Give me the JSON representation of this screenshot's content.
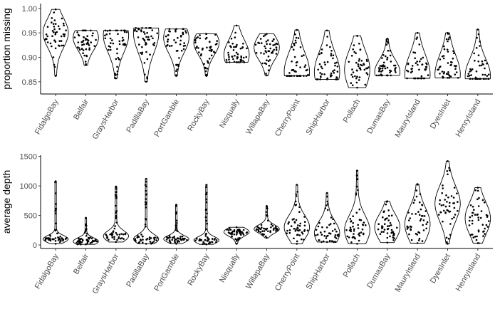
{
  "chart_data": [
    {
      "type": "violin",
      "ylabel": "proportion missing",
      "xlabel": "",
      "ylim": [
        0.825,
        1.01
      ],
      "yticks": [
        "0.85",
        "0.90",
        "0.95",
        "1.00"
      ],
      "yticks_values": [
        0.85,
        0.9,
        0.95,
        1.0
      ],
      "categories": [
        "FidalgoBay",
        "Belfair",
        "GraysHarbor",
        "PadillaBay",
        "PortGamble",
        "RockyBay",
        "Nisqually",
        "WillapaBay",
        "CherryPoint",
        "ShipHarbor",
        "Pollach",
        "DumasBay",
        "MauryIsland",
        "DyesInlet",
        "HenryIsland"
      ],
      "series": [
        {
          "category": "FidalgoBay",
          "min": 0.862,
          "max": 0.998,
          "mode": 0.95,
          "spread": 0.03
        },
        {
          "category": "Belfair",
          "min": 0.884,
          "max": 0.955,
          "mode": 0.94,
          "spread": 0.025
        },
        {
          "category": "GraysHarbor",
          "min": 0.857,
          "max": 0.955,
          "mode": 0.945,
          "spread": 0.035
        },
        {
          "category": "PadillaBay",
          "min": 0.85,
          "max": 0.96,
          "mode": 0.95,
          "spread": 0.04
        },
        {
          "category": "PortGamble",
          "min": 0.862,
          "max": 0.958,
          "mode": 0.94,
          "spread": 0.03
        },
        {
          "category": "RockyBay",
          "min": 0.862,
          "max": 0.948,
          "mode": 0.93,
          "spread": 0.025
        },
        {
          "category": "Nisqually",
          "min": 0.89,
          "max": 0.965,
          "mode": 0.905,
          "spread": 0.03
        },
        {
          "category": "WillapaBay",
          "min": 0.863,
          "max": 0.948,
          "mode": 0.92,
          "spread": 0.025
        },
        {
          "category": "CherryPoint",
          "min": 0.862,
          "max": 0.956,
          "mode": 0.87,
          "spread": 0.04
        },
        {
          "category": "ShipHarbor",
          "min": 0.855,
          "max": 0.955,
          "mode": 0.87,
          "spread": 0.04
        },
        {
          "category": "Pollach",
          "min": 0.838,
          "max": 0.944,
          "mode": 0.875,
          "spread": 0.04
        },
        {
          "category": "DumasBay",
          "min": 0.863,
          "max": 0.938,
          "mode": 0.87,
          "spread": 0.025
        },
        {
          "category": "MauryIsland",
          "min": 0.857,
          "max": 0.95,
          "mode": 0.865,
          "spread": 0.04
        },
        {
          "category": "DyesInlet",
          "min": 0.858,
          "max": 0.95,
          "mode": 0.865,
          "spread": 0.04
        },
        {
          "category": "HenryIsland",
          "min": 0.856,
          "max": 0.957,
          "mode": 0.862,
          "spread": 0.035
        }
      ]
    },
    {
      "type": "violin",
      "ylabel": "average depth",
      "xlabel": "",
      "ylim": [
        -60,
        1520
      ],
      "yticks": [
        "0",
        "500",
        "1000",
        "1500"
      ],
      "yticks_values": [
        0,
        500,
        1000,
        1500
      ],
      "categories": [
        "FidalgoBay",
        "Belfair",
        "GraysHarbor",
        "PadillaBay",
        "PortGamble",
        "RockyBay",
        "Nisqually",
        "WillapaBay",
        "CherryPoint",
        "ShipHarbor",
        "Pollach",
        "DumasBay",
        "MauryIsland",
        "DyesInlet",
        "HenryIsland"
      ],
      "series": [
        {
          "category": "FidalgoBay",
          "min": 20,
          "max": 1080,
          "mode": 100,
          "spread": 60
        },
        {
          "category": "Belfair",
          "min": 10,
          "max": 460,
          "mode": 60,
          "spread": 60
        },
        {
          "category": "GraysHarbor",
          "min": 50,
          "max": 990,
          "mode": 150,
          "spread": 90
        },
        {
          "category": "PadillaBay",
          "min": 20,
          "max": 1120,
          "mode": 100,
          "spread": 80
        },
        {
          "category": "PortGamble",
          "min": 20,
          "max": 680,
          "mode": 100,
          "spread": 60
        },
        {
          "category": "RockyBay",
          "min": 10,
          "max": 1020,
          "mode": 80,
          "spread": 60
        },
        {
          "category": "Nisqually",
          "min": 20,
          "max": 300,
          "mode": 220,
          "spread": 70
        },
        {
          "category": "WillapaBay",
          "min": 120,
          "max": 660,
          "mode": 270,
          "spread": 70
        },
        {
          "category": "CherryPoint",
          "min": 20,
          "max": 1020,
          "mode": 300,
          "spread": 200
        },
        {
          "category": "ShipHarbor",
          "min": 50,
          "max": 880,
          "mode": 200,
          "spread": 200
        },
        {
          "category": "Pollach",
          "min": 20,
          "max": 1260,
          "mode": 250,
          "spread": 250
        },
        {
          "category": "DumasBay",
          "min": 40,
          "max": 740,
          "mode": 300,
          "spread": 220
        },
        {
          "category": "MauryIsland",
          "min": 30,
          "max": 1030,
          "mode": 350,
          "spread": 280
        },
        {
          "category": "DyesInlet",
          "min": 20,
          "max": 1420,
          "mode": 700,
          "spread": 300
        },
        {
          "category": "HenryIsland",
          "min": 30,
          "max": 970,
          "mode": 450,
          "spread": 280
        }
      ]
    }
  ]
}
